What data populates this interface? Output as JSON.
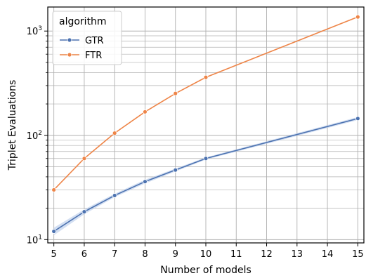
{
  "colors": {
    "GTR": "#4c72b0",
    "FTR": "#ee8548",
    "ci_band": "#aec4e8",
    "grid": "#b0b0b0"
  },
  "chart_data": {
    "type": "line",
    "xlabel": "Number of models",
    "ylabel": "Triplet Evaluations",
    "yscale": "log",
    "x": [
      5,
      6,
      7,
      8,
      9,
      10,
      15
    ],
    "xticks": [
      5,
      6,
      7,
      8,
      9,
      10,
      11,
      12,
      13,
      14,
      15
    ],
    "xlim": [
      4.8,
      15.2
    ],
    "ylim": [
      9.3,
      1700
    ],
    "grid": true,
    "legend": {
      "title": "algorithm",
      "position": "top-left",
      "entries": [
        "GTR",
        "FTR"
      ]
    },
    "y_tick_labels": [
      {
        "value": 10,
        "base": "10",
        "exp": "1"
      },
      {
        "value": 100,
        "base": "10",
        "exp": "2"
      },
      {
        "value": 1000,
        "base": "10",
        "exp": "3"
      }
    ],
    "series": [
      {
        "name": "GTR",
        "color": "#4c72b0",
        "values": [
          12,
          18.5,
          26.5,
          36,
          46.5,
          60,
          145
        ],
        "ci_lower": [
          11,
          17.5,
          25.5,
          34.5,
          45,
          58.5,
          140
        ],
        "ci_upper": [
          13,
          19.5,
          27.5,
          37.5,
          48,
          61.5,
          150
        ]
      },
      {
        "name": "FTR",
        "color": "#ee8548",
        "values": [
          30,
          60,
          105,
          168,
          252,
          360,
          1365
        ]
      }
    ]
  }
}
